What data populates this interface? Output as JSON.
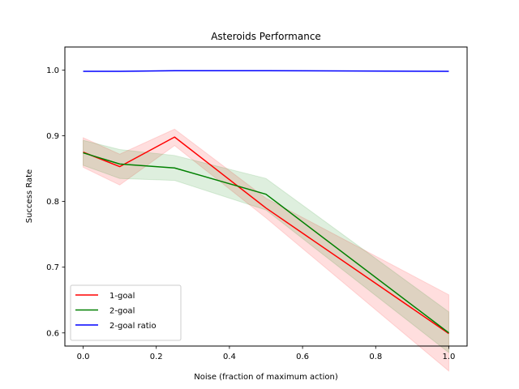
{
  "chart_data": {
    "type": "line",
    "title": "Asteroids Performance",
    "xlabel": "Noise (fraction of maximum action)",
    "ylabel": "Success Rate",
    "xlim": [
      -0.05,
      1.05
    ],
    "ylim": [
      0.58,
      1.035
    ],
    "xticks": [
      0.0,
      0.2,
      0.4,
      0.6,
      0.8,
      1.0
    ],
    "xtick_labels": [
      "0.0",
      "0.2",
      "0.4",
      "0.6",
      "0.8",
      "1.0"
    ],
    "yticks": [
      0.6,
      0.7,
      0.8,
      0.9,
      1.0
    ],
    "ytick_labels": [
      "0.6",
      "0.7",
      "0.8",
      "0.9",
      "1.0"
    ],
    "grid": false,
    "legend_position": "lower-left",
    "series": [
      {
        "name": "1-goal",
        "color": "#ff0000",
        "band_color": "#ff0000",
        "x": [
          0.0,
          0.1,
          0.25,
          0.5,
          1.0
        ],
        "y": [
          0.875,
          0.853,
          0.898,
          0.79,
          0.599
        ],
        "lower": [
          0.852,
          0.825,
          0.885,
          0.775,
          0.542
        ],
        "upper": [
          0.897,
          0.872,
          0.91,
          0.805,
          0.658
        ]
      },
      {
        "name": "2-goal",
        "color": "#008000",
        "band_color": "#008000",
        "x": [
          0.0,
          0.1,
          0.25,
          0.5,
          1.0
        ],
        "y": [
          0.874,
          0.857,
          0.851,
          0.811,
          0.6
        ],
        "lower": [
          0.855,
          0.835,
          0.832,
          0.787,
          0.57
        ],
        "upper": [
          0.893,
          0.879,
          0.87,
          0.835,
          0.632
        ]
      },
      {
        "name": "2-goal ratio",
        "color": "#0000ff",
        "x": [
          0.0,
          0.1,
          0.25,
          0.5,
          1.0
        ],
        "y": [
          0.998,
          0.998,
          0.999,
          0.999,
          0.998
        ]
      }
    ]
  }
}
